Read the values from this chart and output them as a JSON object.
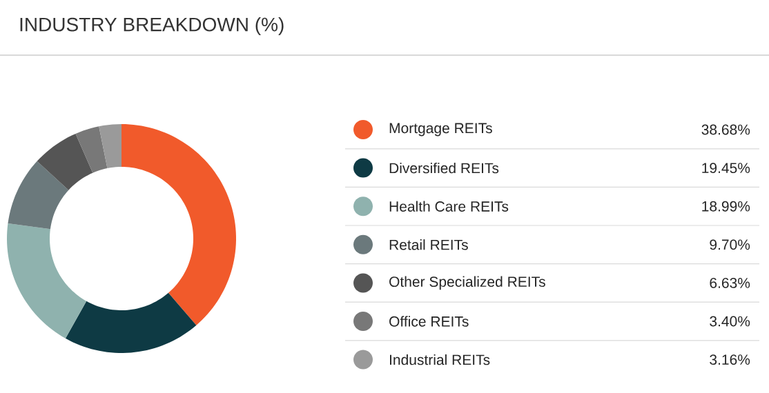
{
  "chart_data": {
    "type": "donut",
    "title": "INDUSTRY BREAKDOWN (%)",
    "categories": [
      "Mortgage REITs",
      "Diversified REITs",
      "Health Care REITs",
      "Retail REITs",
      "Other Specialized REITs",
      "Office REITs",
      "Industrial REITs"
    ],
    "values": [
      38.68,
      19.45,
      18.99,
      9.7,
      6.63,
      3.4,
      3.16
    ],
    "value_labels": [
      "38.68%",
      "19.45%",
      "18.99%",
      "9.70%",
      "6.63%",
      "3.40%",
      "3.16%"
    ],
    "colors": [
      "#f15a2b",
      "#0e3a44",
      "#8fb2ae",
      "#6b797c",
      "#555555",
      "#787878",
      "#9a9a9a"
    ],
    "legend": "right"
  }
}
